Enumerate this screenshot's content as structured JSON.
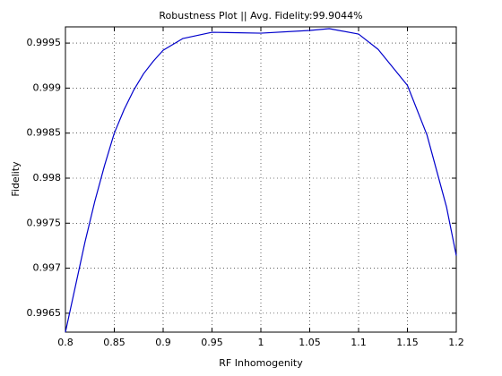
{
  "chart_data": {
    "type": "line",
    "title": "Robustness Plot || Avg. Fidelity:99.9044%",
    "x_label": "RF Inhomogenity",
    "y_label": "Fidelity",
    "x": [
      0.8,
      0.81,
      0.82,
      0.83,
      0.84,
      0.85,
      0.86,
      0.87,
      0.88,
      0.89,
      0.9,
      0.92,
      0.95,
      1.0,
      1.05,
      1.07,
      1.1,
      1.12,
      1.15,
      1.17,
      1.19,
      1.2
    ],
    "values": [
      0.99629,
      0.99679,
      0.99729,
      0.99774,
      0.99814,
      0.9985,
      0.99876,
      0.99898,
      0.99916,
      0.9993,
      0.99942,
      0.99955,
      0.99962,
      0.99961,
      0.99964,
      0.99966,
      0.9996,
      0.99943,
      0.99903,
      0.99848,
      0.99768,
      0.99714
    ],
    "color": "#0000cc",
    "xlim": [
      0.8,
      1.2
    ],
    "ylim": [
      0.99629,
      0.99968
    ],
    "xticks": [
      0.8,
      0.85,
      0.9,
      0.95,
      1,
      1.05,
      1.1,
      1.15,
      1.2
    ],
    "yticks": [
      0.9965,
      0.997,
      0.9975,
      0.998,
      0.9985,
      0.999,
      0.9995
    ],
    "grid": true
  }
}
